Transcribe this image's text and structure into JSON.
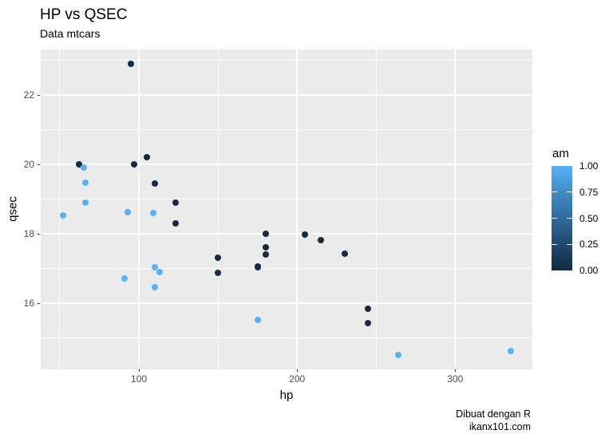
{
  "header": {
    "title": "HP vs QSEC",
    "subtitle": "Data mtcars"
  },
  "caption": {
    "line1": "Dibuat dengan R",
    "line2": "ikanx101.com"
  },
  "chart_data": {
    "type": "scatter",
    "title": "HP vs QSEC",
    "subtitle": "Data mtcars",
    "xlabel": "hp",
    "ylabel": "qsec",
    "xlim": [
      37.9,
      348.8
    ],
    "ylim": [
      14.08,
      23.32
    ],
    "x_major_ticks": [
      100,
      200,
      300
    ],
    "x_minor_ticks": [
      50,
      150,
      250
    ],
    "y_major_ticks": [
      16,
      18,
      20,
      22
    ],
    "y_minor_ticks": [
      15,
      17,
      19,
      21,
      23
    ],
    "grid": true,
    "panel_bg": "#EBEBEB",
    "grid_color": "#FFFFFF",
    "tick_label_color": "#4D4D4D",
    "legend": {
      "title": "am",
      "position": "right",
      "labels": [
        "1.00",
        "0.75",
        "0.50",
        "0.25",
        "0.00"
      ],
      "values": [
        1.0,
        0.75,
        0.5,
        0.25,
        0.0
      ],
      "low_color": "#132B43",
      "high_color": "#56B1F7"
    },
    "series": [
      {
        "name": "am = 0",
        "color": "#132B43",
        "points": [
          {
            "hp": 110,
            "qsec": 19.44
          },
          {
            "hp": 175,
            "qsec": 17.02
          },
          {
            "hp": 105,
            "qsec": 20.22
          },
          {
            "hp": 245,
            "qsec": 15.84
          },
          {
            "hp": 62,
            "qsec": 20.0
          },
          {
            "hp": 95,
            "qsec": 22.9
          },
          {
            "hp": 123,
            "qsec": 18.3
          },
          {
            "hp": 123,
            "qsec": 18.9
          },
          {
            "hp": 180,
            "qsec": 17.4
          },
          {
            "hp": 180,
            "qsec": 17.6
          },
          {
            "hp": 180,
            "qsec": 18.0
          },
          {
            "hp": 205,
            "qsec": 17.98
          },
          {
            "hp": 215,
            "qsec": 17.82
          },
          {
            "hp": 230,
            "qsec": 17.42
          },
          {
            "hp": 97,
            "qsec": 20.01
          },
          {
            "hp": 150,
            "qsec": 16.87
          },
          {
            "hp": 150,
            "qsec": 17.3
          },
          {
            "hp": 245,
            "qsec": 15.41
          },
          {
            "hp": 175,
            "qsec": 17.05
          }
        ]
      },
      {
        "name": "am = 1",
        "color": "#56B1F7",
        "points": [
          {
            "hp": 110,
            "qsec": 16.46
          },
          {
            "hp": 110,
            "qsec": 17.02
          },
          {
            "hp": 93,
            "qsec": 18.61
          },
          {
            "hp": 66,
            "qsec": 19.47
          },
          {
            "hp": 52,
            "qsec": 18.52
          },
          {
            "hp": 65,
            "qsec": 19.9
          },
          {
            "hp": 66,
            "qsec": 18.9
          },
          {
            "hp": 91,
            "qsec": 16.7
          },
          {
            "hp": 113,
            "qsec": 16.9
          },
          {
            "hp": 264,
            "qsec": 14.5
          },
          {
            "hp": 175,
            "qsec": 15.5
          },
          {
            "hp": 335,
            "qsec": 14.6
          },
          {
            "hp": 109,
            "qsec": 18.6
          }
        ]
      }
    ]
  }
}
